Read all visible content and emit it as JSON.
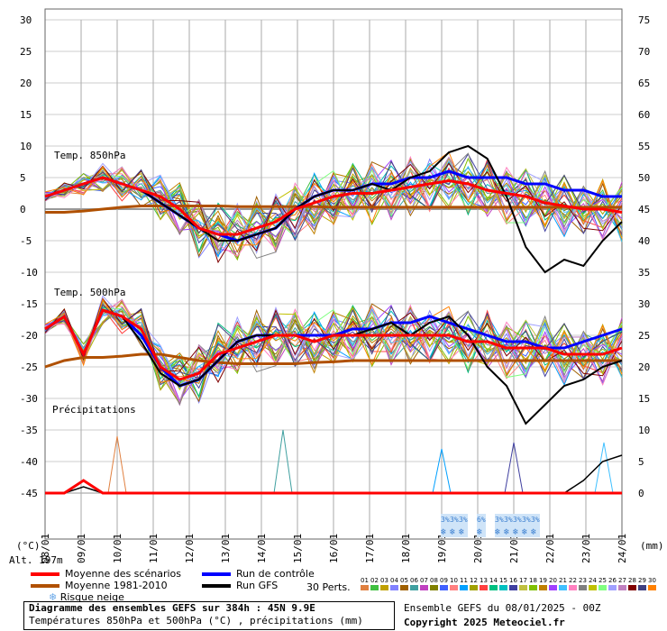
{
  "labels": {
    "unit_left": "(°C)",
    "unit_right": "(mm)",
    "altitude": "Alt. 197m",
    "temp850": "Temp. 850hPa",
    "temp500": "Temp. 500hPa",
    "precip": "Précipitations"
  },
  "legend": {
    "mean_scenarios": "Moyenne des scénarios",
    "mean_1981_2010": "Moyenne 1981-2010",
    "snow_risk": "Risque neige",
    "control_run": "Run de contrôle",
    "gfs_run": "Run GFS",
    "perts_label": "30 Perts.",
    "perts": [
      "01",
      "02",
      "03",
      "04",
      "05",
      "06",
      "07",
      "08",
      "09",
      "10",
      "11",
      "12",
      "13",
      "14",
      "15",
      "16",
      "17",
      "18",
      "19",
      "20",
      "21",
      "22",
      "23",
      "24",
      "25",
      "26",
      "27",
      "28",
      "29",
      "30"
    ],
    "pert_colors": [
      "#e08040",
      "#40c040",
      "#c0a000",
      "#8080ff",
      "#a06000",
      "#40a0a0",
      "#c040c0",
      "#808000",
      "#4060ff",
      "#ff8080",
      "#00a0ff",
      "#a0a000",
      "#ff4040",
      "#00c080",
      "#00c0c0",
      "#4040a0",
      "#c0c040",
      "#80c000",
      "#c08000",
      "#a040ff",
      "#40c0ff",
      "#ff80c0",
      "#808080",
      "#c0c000",
      "#80ff80",
      "#a0a0ff",
      "#c080c0",
      "#800000",
      "#404080",
      "#ff8000"
    ]
  },
  "footer": {
    "title": "Diagramme des ensembles GEFS sur 384h : 45N 9.9E",
    "subtitle": "Températures 850hPa et 500hPa (°C) , précipitations (mm)",
    "run": "Ensemble GEFS du 08/01/2025 - 00Z",
    "copyright": "Copyright 2025 Meteociel.fr"
  },
  "colors": {
    "mean": "#ff0000",
    "climate": "#b05000",
    "control": "#0000ff",
    "gfs": "#000000",
    "snow": "#6aa8e8"
  },
  "chart_data": {
    "type": "line",
    "x_dates": [
      "08/01",
      "09/01",
      "10/01",
      "11/01",
      "12/01",
      "13/01",
      "14/01",
      "15/01",
      "16/01",
      "17/01",
      "18/01",
      "19/01",
      "20/01",
      "21/01",
      "22/01",
      "23/01",
      "24/01"
    ],
    "x_step_hours": 6,
    "y_left_ticks": [
      30,
      25,
      20,
      15,
      10,
      5,
      0,
      -5,
      -10,
      -15,
      -20,
      -25,
      -30,
      -35,
      -40,
      -45
    ],
    "y_right_ticks": [
      75,
      70,
      65,
      60,
      55,
      50,
      45,
      40,
      35,
      30,
      25,
      20,
      15,
      10,
      5,
      0
    ],
    "ylim_left": [
      -45,
      30
    ],
    "ylim_right": [
      0,
      75
    ],
    "snow_markers": [
      {
        "date_index": 11.1,
        "label": "3%"
      },
      {
        "date_index": 11.35,
        "label": "3%"
      },
      {
        "date_index": 11.6,
        "label": "3%"
      },
      {
        "date_index": 12.1,
        "label": "6%"
      },
      {
        "date_index": 12.6,
        "label": "3%"
      },
      {
        "date_index": 12.85,
        "label": "3%"
      },
      {
        "date_index": 13.1,
        "label": "3%"
      },
      {
        "date_index": 13.35,
        "label": "3%"
      },
      {
        "date_index": 13.6,
        "label": "3%"
      }
    ],
    "t850_mean": [
      2,
      3,
      4,
      5,
      4,
      3,
      2,
      0,
      -3,
      -4,
      -4,
      -3,
      -2,
      0,
      1,
      2,
      2.5,
      2.5,
      3,
      3.5,
      4,
      4.5,
      4,
      3,
      2.5,
      2,
      1,
      0.5,
      0,
      0,
      -0.5
    ],
    "t850_control": [
      2,
      3,
      4,
      5,
      4,
      3,
      1,
      -1,
      -3,
      -4,
      -5,
      -4,
      -3,
      0,
      2,
      3,
      3,
      4,
      4,
      5,
      5,
      6,
      5,
      5,
      5,
      4,
      4,
      3,
      3,
      2,
      2
    ],
    "t850_gfs": [
      2,
      3,
      4,
      5,
      4,
      3,
      1,
      -1,
      -3,
      -5,
      -5,
      -4,
      -3,
      0,
      2,
      3,
      3,
      4,
      3,
      5,
      6,
      9,
      10,
      8,
      2,
      -6,
      -10,
      -8,
      -9,
      -5,
      -2
    ],
    "t850_climate": [
      -0.5,
      -0.5,
      -0.3,
      0,
      0.3,
      0.5,
      0.5,
      0.5,
      0.5,
      0.5,
      0.4,
      0.4,
      0.4,
      0.4,
      0.4,
      0.3,
      0.3,
      0.3,
      0.3,
      0.3,
      0.3,
      0.3,
      0.3,
      0.3,
      0.3,
      0.3,
      0.3,
      0.3,
      0.3,
      0.3,
      0.3
    ],
    "t500_mean": [
      -19,
      -17,
      -23,
      -16,
      -17,
      -19,
      -25,
      -27,
      -26,
      -23,
      -22,
      -21,
      -20,
      -20,
      -21,
      -20,
      -20,
      -20,
      -20,
      -20,
      -20,
      -20,
      -21,
      -21,
      -22,
      -22,
      -22,
      -23,
      -23,
      -23,
      -22
    ],
    "t500_control": [
      -19,
      -17,
      -23,
      -16,
      -17,
      -20,
      -25,
      -28,
      -27,
      -24,
      -21,
      -20,
      -20,
      -20,
      -20,
      -20,
      -19,
      -19,
      -18,
      -18,
      -17,
      -18,
      -19,
      -20,
      -21,
      -21,
      -22,
      -22,
      -21,
      -20,
      -19
    ],
    "t500_gfs": [
      -19,
      -17,
      -23,
      -16,
      -17,
      -21,
      -26,
      -28,
      -27,
      -24,
      -21,
      -20,
      -20,
      -20,
      -21,
      -20,
      -20,
      -19,
      -18,
      -20,
      -18,
      -17,
      -20,
      -25,
      -28,
      -34,
      -31,
      -28,
      -27,
      -25,
      -24
    ],
    "t500_climate": [
      -25,
      -24,
      -23.5,
      -23.5,
      -23.3,
      -23,
      -23,
      -23.5,
      -24,
      -24.3,
      -24.5,
      -24.5,
      -24.5,
      -24.5,
      -24.3,
      -24.2,
      -24,
      -24,
      -24,
      -24,
      -24,
      -24,
      -24,
      -24,
      -24,
      -24,
      -24,
      -24,
      -24,
      -24,
      -24
    ],
    "precip_mean": [
      0,
      0,
      2,
      0,
      0,
      0,
      0,
      0,
      0,
      0,
      0,
      0,
      0,
      0,
      0,
      0,
      0,
      0,
      0,
      0,
      0,
      0,
      0,
      0,
      0,
      0,
      0,
      0,
      0,
      0,
      0
    ],
    "precip_gfs": [
      0,
      0,
      1,
      0,
      0,
      0,
      0,
      0,
      0,
      0,
      0,
      0,
      0,
      0,
      0,
      0,
      0,
      0,
      0,
      0,
      0,
      0,
      0,
      0,
      0,
      0,
      0,
      0,
      2,
      5,
      6
    ],
    "precip_peaks": [
      {
        "series": "pert",
        "x": 2,
        "value": 9
      },
      {
        "series": "pert",
        "x": 6.6,
        "value": 10
      },
      {
        "series": "pert",
        "x": 11,
        "value": 7
      },
      {
        "series": "pert",
        "x": 13,
        "value": 8
      },
      {
        "series": "pert",
        "x": 15.5,
        "value": 8
      }
    ]
  }
}
